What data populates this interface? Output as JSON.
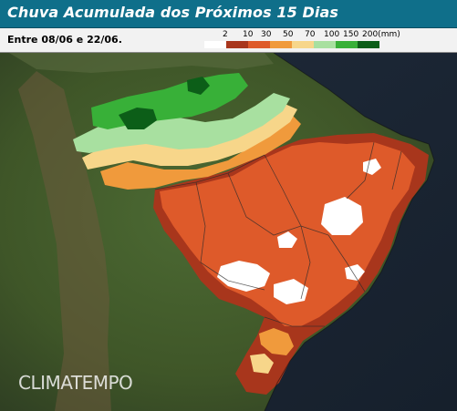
{
  "header": {
    "title": "Chuva Acumulada dos Próximos 15 Dias"
  },
  "info": {
    "period": "Entre 08/06 e 22/06."
  },
  "legend": {
    "labels": [
      "2",
      "10",
      "30",
      "50",
      "70",
      "100",
      "150",
      "200(mm)"
    ],
    "colors": [
      "#ffffff",
      "#a8361c",
      "#de5a2a",
      "#f09a3c",
      "#f7d68a",
      "#a8e0a0",
      "#38b038",
      "#0c5e18"
    ]
  },
  "map": {
    "region": "Brasil",
    "layers": [
      "precipitation",
      "relief",
      "state-borders"
    ]
  },
  "branding": {
    "logo": "CLIMATEMPO"
  }
}
